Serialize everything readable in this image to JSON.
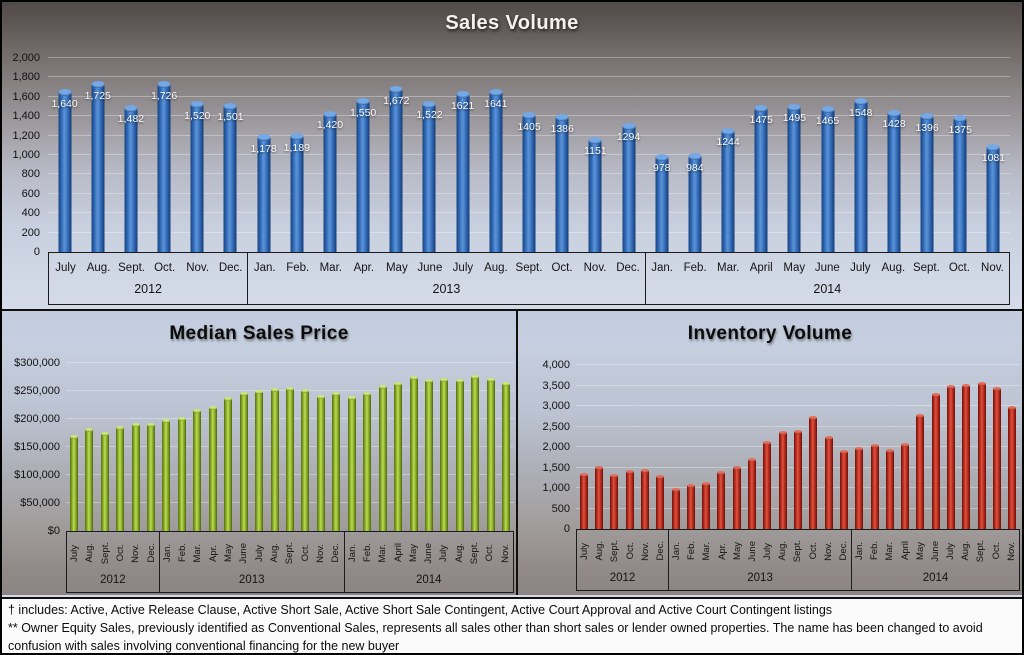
{
  "chart_data": [
    {
      "type": "bar",
      "title": "Sales Volume",
      "categories": [
        "July",
        "Aug.",
        "Sept.",
        "Oct.",
        "Nov.",
        "Dec.",
        "Jan.",
        "Feb.",
        "Mar.",
        "Apr.",
        "May",
        "June",
        "July",
        "Aug.",
        "Sept.",
        "Oct.",
        "Nov.",
        "Dec.",
        "Jan.",
        "Feb.",
        "Mar.",
        "April",
        "May",
        "June",
        "July",
        "Aug.",
        "Sept.",
        "Oct.",
        "Nov."
      ],
      "year_groups": [
        {
          "label": "2012",
          "count": 6
        },
        {
          "label": "2013",
          "count": 12
        },
        {
          "label": "2014",
          "count": 11
        }
      ],
      "values": [
        1640,
        1725,
        1482,
        1726,
        1520,
        1501,
        1178,
        1189,
        1420,
        1550,
        1672,
        1522,
        1621,
        1641,
        1405,
        1386,
        1151,
        1294,
        978,
        984,
        1244,
        1475,
        1495,
        1465,
        1548,
        1428,
        1396,
        1375,
        1081
      ],
      "bar_labels": [
        "1,640",
        "1,725",
        "1,482",
        "1,726",
        "1,520",
        "1,501",
        "1,178",
        "1,189",
        "1,420",
        "1,550",
        "1,672",
        "1,522",
        "1621",
        "1641",
        "1405",
        "1386",
        "1151",
        "1294",
        "978",
        "984",
        "1244",
        "1475",
        "1495",
        "1465",
        "1548",
        "1428",
        "1396",
        "1375",
        "1081"
      ],
      "y_axis": {
        "min": 0,
        "max": 2000,
        "step": 200,
        "tick_labels": [
          "0",
          "200",
          "400",
          "600",
          "800",
          "1,000",
          "1,200",
          "1,400",
          "1,600",
          "1,800",
          "2,000"
        ]
      },
      "bar_color": "#3a74c6",
      "bar_cap_color": "#74a8e6",
      "grid": true,
      "legend": "none",
      "value_labels": true
    },
    {
      "type": "bar",
      "title": "Median Sales Price",
      "categories": [
        "July",
        "Aug.",
        "Sept.",
        "Oct.",
        "Nov.",
        "Dec.",
        "Jan.",
        "Feb.",
        "Mar.",
        "Apr.",
        "May",
        "June",
        "July",
        "Aug.",
        "Sept.",
        "Oct.",
        "Nov.",
        "Dec.",
        "Jan.",
        "Feb.",
        "Mar.",
        "April",
        "May",
        "June",
        "July",
        "Aug.",
        "Sept.",
        "Oct.",
        "Nov."
      ],
      "year_groups": [
        {
          "label": "2012",
          "count": 6
        },
        {
          "label": "2013",
          "count": 12
        },
        {
          "label": "2014",
          "count": 11
        }
      ],
      "values": [
        168000,
        180000,
        173000,
        184000,
        190000,
        189000,
        196000,
        200000,
        214000,
        219000,
        235000,
        244000,
        249000,
        251000,
        254000,
        250000,
        240000,
        245000,
        238000,
        245000,
        257000,
        263000,
        273000,
        267000,
        269000,
        267000,
        275000,
        270000,
        262000
      ],
      "values_note": "estimated from bar heights; no data labels shown",
      "y_axis": {
        "min": 0,
        "max": 300000,
        "step": 50000,
        "tick_labels": [
          "$0",
          "$50,000",
          "$100,000",
          "$150,000",
          "$200,000",
          "$250,000",
          "$300,000"
        ]
      },
      "bar_color": "#9cc136",
      "bar_cap_color": "#cde878",
      "grid": true,
      "legend": "none",
      "value_labels": false
    },
    {
      "type": "bar",
      "title": "Inventory Volume",
      "categories": [
        "July",
        "Aug.",
        "Sept.",
        "Oct.",
        "Nov.",
        "Dec.",
        "Jan.",
        "Feb.",
        "Mar.",
        "Apr.",
        "May",
        "June",
        "July",
        "Aug.",
        "Sept.",
        "Oct.",
        "Nov.",
        "Dec.",
        "Jan.",
        "Feb.",
        "Mar.",
        "April",
        "May",
        "June",
        "July",
        "Aug.",
        "Sept.",
        "Oct.",
        "Nov."
      ],
      "year_groups": [
        {
          "label": "2012",
          "count": 6
        },
        {
          "label": "2013",
          "count": 12
        },
        {
          "label": "2014",
          "count": 11
        }
      ],
      "values": [
        1320,
        1480,
        1300,
        1380,
        1410,
        1280,
        960,
        1040,
        1090,
        1370,
        1480,
        1690,
        2110,
        2350,
        2360,
        2700,
        2220,
        1870,
        1950,
        2020,
        1910,
        2040,
        2750,
        3280,
        3470,
        3500,
        3540,
        3420,
        2960
      ],
      "values_note": "estimated from bar heights; no data labels shown",
      "y_axis": {
        "min": 0,
        "max": 4000,
        "step": 500,
        "tick_labels": [
          "0",
          "500",
          "1,000",
          "1,500",
          "2,000",
          "2,500",
          "3,000",
          "3,500",
          "4,000"
        ]
      },
      "bar_color": "#c43829",
      "bar_cap_color": "#e2705c",
      "grid": true,
      "legend": "none",
      "value_labels": false
    }
  ],
  "footnotes": [
    "† includes: Active, Active Release Clause, Active Short Sale, Active Short Sale Contingent, Active Court Approval and Active Court Contingent listings",
    "** Owner Equity Sales, previously identified as Conventional Sales, represents all sales other than short sales or lender owned properties. The name has been changed to avoid confusion with sales involving conventional financing for the new buyer"
  ]
}
